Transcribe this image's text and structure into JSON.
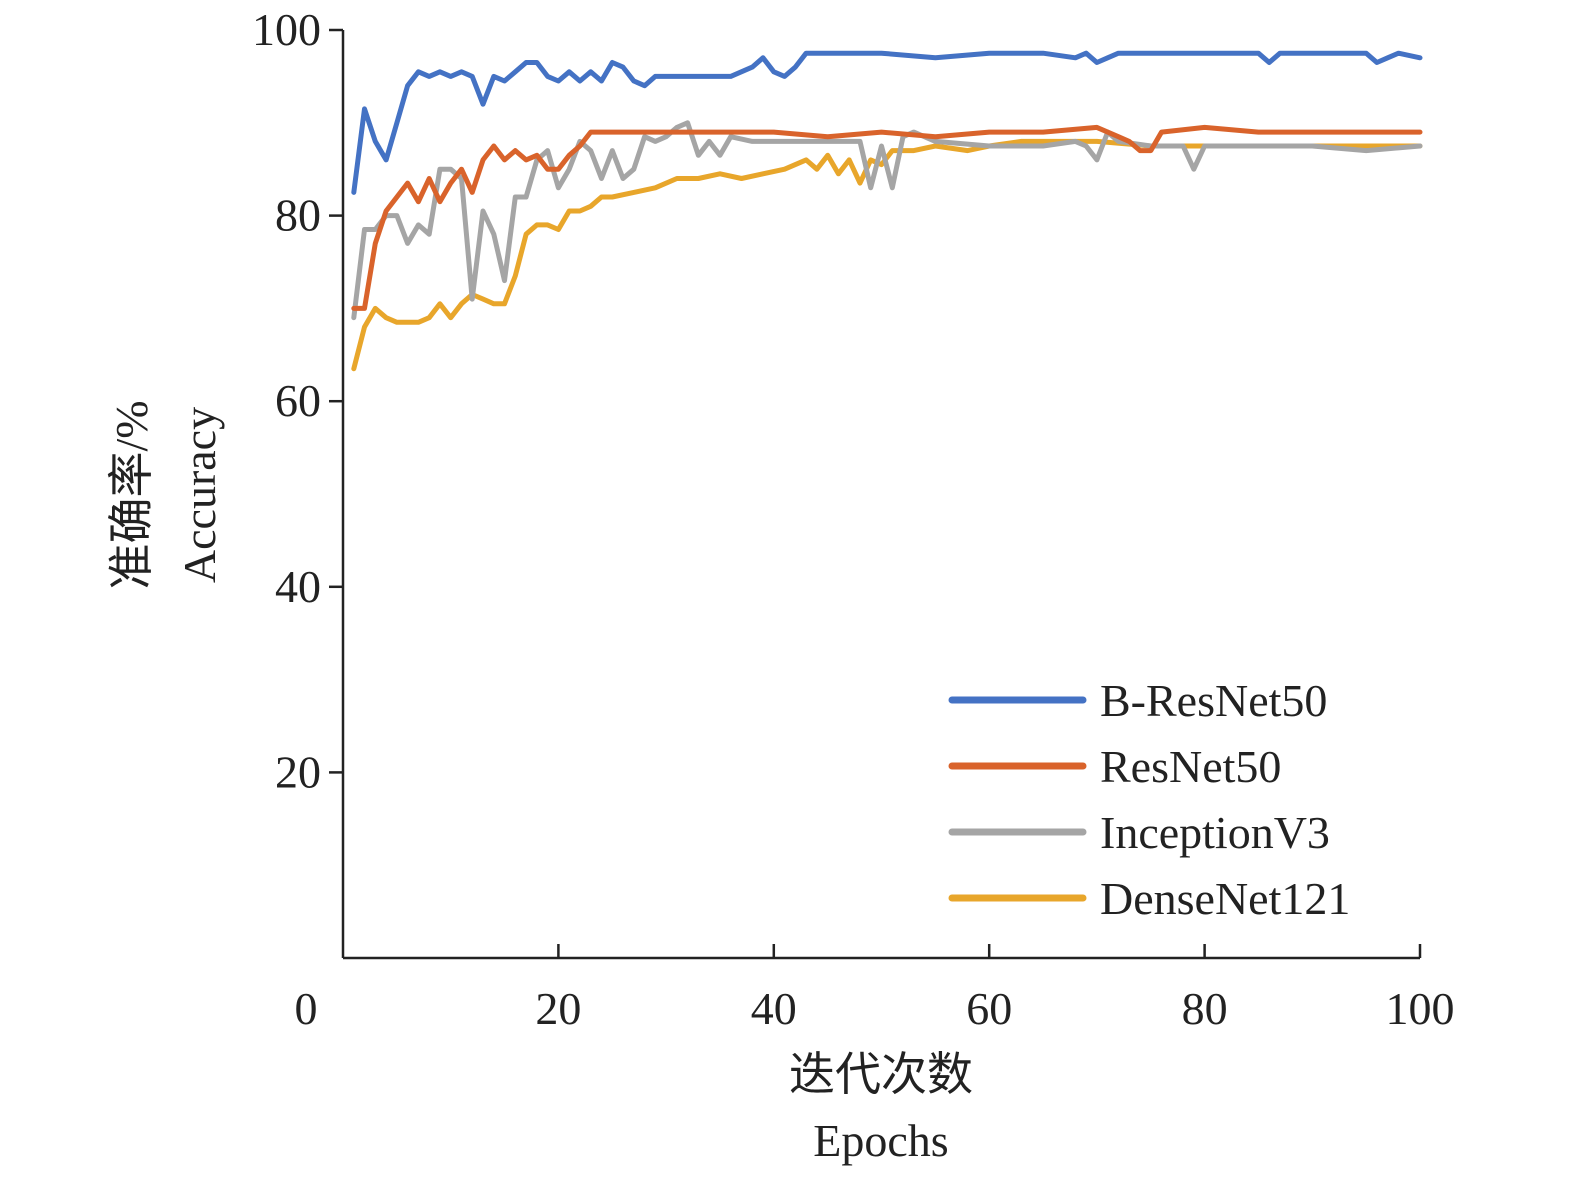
{
  "chart_data": {
    "type": "line",
    "title": "",
    "xlabel": [
      "迭代次数",
      "Epochs"
    ],
    "ylabel": [
      "准确率/%",
      "Accuracy"
    ],
    "xlim": [
      0,
      100
    ],
    "ylim": [
      0,
      100
    ],
    "xticks": [
      0,
      20,
      40,
      60,
      80,
      100
    ],
    "yticks": [
      20,
      40,
      60,
      80,
      100
    ],
    "grid": false,
    "legend_position": "bottom-right",
    "series": [
      {
        "name": "B-ResNet50",
        "color": "#4472C4",
        "x": [
          1,
          2,
          3,
          4,
          5,
          6,
          7,
          8,
          9,
          10,
          11,
          12,
          13,
          14,
          15,
          16,
          17,
          18,
          19,
          20,
          21,
          22,
          23,
          24,
          25,
          26,
          27,
          28,
          29,
          30,
          32,
          34,
          36,
          38,
          39,
          40,
          41,
          42,
          43,
          45,
          50,
          55,
          60,
          65,
          68,
          69,
          70,
          71,
          72,
          75,
          80,
          85,
          86,
          87,
          90,
          95,
          96,
          97,
          98,
          100
        ],
        "y": [
          82.5,
          91.5,
          88.0,
          86.0,
          90.0,
          94.0,
          95.5,
          95.0,
          95.5,
          95.0,
          95.5,
          95.0,
          92.0,
          95.0,
          94.5,
          95.5,
          96.5,
          96.5,
          95.0,
          94.5,
          95.5,
          94.5,
          95.5,
          94.5,
          96.5,
          96.0,
          94.5,
          94.0,
          95.0,
          95.0,
          95.0,
          95.0,
          95.0,
          96.0,
          97.0,
          95.5,
          95.0,
          96.0,
          97.5,
          97.5,
          97.5,
          97.0,
          97.5,
          97.5,
          97.0,
          97.5,
          96.5,
          97.0,
          97.5,
          97.5,
          97.5,
          97.5,
          96.5,
          97.5,
          97.5,
          97.5,
          96.5,
          97.0,
          97.5,
          97.0
        ]
      },
      {
        "name": "ResNet50",
        "color": "#D9632B",
        "x": [
          1,
          2,
          3,
          4,
          5,
          6,
          7,
          8,
          9,
          10,
          11,
          12,
          13,
          14,
          15,
          16,
          17,
          18,
          19,
          20,
          21,
          22,
          23,
          25,
          30,
          35,
          40,
          45,
          50,
          55,
          60,
          65,
          70,
          72,
          73,
          74,
          75,
          76,
          80,
          85,
          90,
          95,
          100
        ],
        "y": [
          70.0,
          70.0,
          77.0,
          80.5,
          82.0,
          83.5,
          81.5,
          84.0,
          81.5,
          83.5,
          85.0,
          82.5,
          86.0,
          87.5,
          86.0,
          87.0,
          86.0,
          86.5,
          85.0,
          85.0,
          86.5,
          87.5,
          89.0,
          89.0,
          89.0,
          89.0,
          89.0,
          88.5,
          89.0,
          88.5,
          89.0,
          89.0,
          89.5,
          88.5,
          88.0,
          87.0,
          87.0,
          89.0,
          89.5,
          89.0,
          89.0,
          89.0,
          89.0
        ]
      },
      {
        "name": "InceptionV3",
        "color": "#A5A5A5",
        "x": [
          1,
          2,
          3,
          4,
          5,
          6,
          7,
          8,
          9,
          10,
          11,
          12,
          13,
          14,
          15,
          16,
          17,
          18,
          19,
          20,
          21,
          22,
          23,
          24,
          25,
          26,
          27,
          28,
          29,
          30,
          31,
          32,
          33,
          34,
          35,
          36,
          38,
          40,
          42,
          45,
          47,
          48,
          49,
          50,
          51,
          52,
          53,
          55,
          60,
          65,
          68,
          69,
          70,
          71,
          72,
          75,
          78,
          79,
          80,
          85,
          90,
          95,
          100
        ],
        "y": [
          69.0,
          78.5,
          78.5,
          80.0,
          80.0,
          77.0,
          79.0,
          78.0,
          85.0,
          85.0,
          84.0,
          71.0,
          80.5,
          78.0,
          73.0,
          82.0,
          82.0,
          86.0,
          87.0,
          83.0,
          85.0,
          88.0,
          87.0,
          84.0,
          87.0,
          84.0,
          85.0,
          88.5,
          88.0,
          88.5,
          89.5,
          90.0,
          86.5,
          88.0,
          86.5,
          88.5,
          88.0,
          88.0,
          88.0,
          88.0,
          88.0,
          88.0,
          83.0,
          87.5,
          83.0,
          88.5,
          89.0,
          88.0,
          87.5,
          87.5,
          88.0,
          87.5,
          86.0,
          89.0,
          88.0,
          87.5,
          87.5,
          85.0,
          87.5,
          87.5,
          87.5,
          87.0,
          87.5
        ]
      },
      {
        "name": "DenseNet121",
        "color": "#E8A62B",
        "x": [
          1,
          2,
          3,
          4,
          5,
          6,
          7,
          8,
          9,
          10,
          11,
          12,
          13,
          14,
          15,
          16,
          17,
          18,
          19,
          20,
          21,
          22,
          23,
          24,
          25,
          27,
          29,
          31,
          33,
          35,
          37,
          39,
          41,
          43,
          44,
          45,
          46,
          47,
          48,
          49,
          50,
          51,
          53,
          55,
          58,
          60,
          63,
          66,
          70,
          75,
          80,
          85,
          90,
          95,
          100
        ],
        "y": [
          63.5,
          68.0,
          70.0,
          69.0,
          68.5,
          68.5,
          68.5,
          69.0,
          70.5,
          69.0,
          70.5,
          71.5,
          71.0,
          70.5,
          70.5,
          73.5,
          78.0,
          79.0,
          79.0,
          78.5,
          80.5,
          80.5,
          81.0,
          82.0,
          82.0,
          82.5,
          83.0,
          84.0,
          84.0,
          84.5,
          84.0,
          84.5,
          85.0,
          86.0,
          85.0,
          86.5,
          84.5,
          86.0,
          83.5,
          86.0,
          85.5,
          87.0,
          87.0,
          87.5,
          87.0,
          87.5,
          88.0,
          88.0,
          88.0,
          87.5,
          87.5,
          87.5,
          87.5,
          87.5,
          87.5
        ]
      }
    ]
  }
}
